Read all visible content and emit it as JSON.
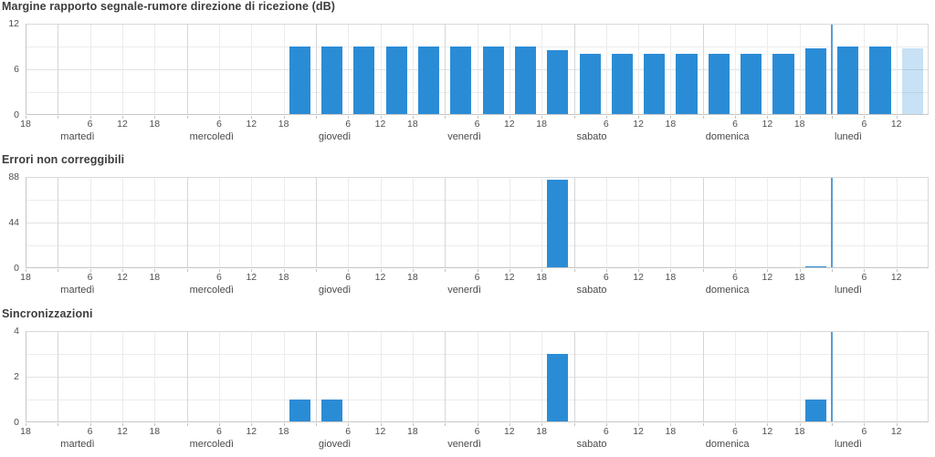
{
  "page": {
    "background": "#ffffff",
    "description_labels": {
      "language": "it"
    }
  },
  "colors": {
    "bar": "#2b8cd6",
    "bar_partial": "rgba(43,140,214,0.26)",
    "current_day_line": "#569dd4",
    "grid_minor": "#ececec",
    "grid_major": "#e2e2e2",
    "grid_day_boundary": "#d6d6d6",
    "plot_border": "#d9d9d9",
    "axis_line": "#c6c6c6",
    "tick_mark": "#c2c2c2",
    "title_text": "#3d3d3d",
    "tick_text": "#4f4f4f"
  },
  "time_axis": {
    "start_tick_label": "18",
    "days": [
      "martedì",
      "mercoledì",
      "giovedì",
      "venerdì",
      "sabato",
      "domenica",
      "lunedì"
    ],
    "intra_day_tick_labels": [
      "6",
      "12",
      "18"
    ],
    "total_hours": 168,
    "first_day_start_h": 6,
    "day_length_h": 24,
    "slot_hours": 6,
    "current_day": "lunedì",
    "current_day_start_h": 150
  },
  "chart_data": [
    {
      "type": "bar",
      "title": "Margine rapporto segnale-rumore direzione di ricezione (dB)",
      "ylabel": "",
      "xlabel": "",
      "ylim": [
        0,
        12
      ],
      "ytick_labels": [
        "0",
        "6",
        "12"
      ],
      "grid": true,
      "legend": "none",
      "bars": [
        {
          "day": "mercoledì",
          "hours": "18-24",
          "start_h": 48,
          "value": 9
        },
        {
          "day": "giovedì",
          "hours": "0-6",
          "start_h": 54,
          "value": 9
        },
        {
          "day": "giovedì",
          "hours": "6-12",
          "start_h": 60,
          "value": 9
        },
        {
          "day": "giovedì",
          "hours": "12-18",
          "start_h": 66,
          "value": 9
        },
        {
          "day": "giovedì",
          "hours": "18-24",
          "start_h": 72,
          "value": 9
        },
        {
          "day": "venerdì",
          "hours": "0-6",
          "start_h": 78,
          "value": 9
        },
        {
          "day": "venerdì",
          "hours": "6-12",
          "start_h": 84,
          "value": 9
        },
        {
          "day": "venerdì",
          "hours": "12-18",
          "start_h": 90,
          "value": 9
        },
        {
          "day": "venerdì",
          "hours": "18-24",
          "start_h": 96,
          "value": 8.5
        },
        {
          "day": "sabato",
          "hours": "0-6",
          "start_h": 102,
          "value": 8
        },
        {
          "day": "sabato",
          "hours": "6-12",
          "start_h": 108,
          "value": 8
        },
        {
          "day": "sabato",
          "hours": "12-18",
          "start_h": 114,
          "value": 8
        },
        {
          "day": "sabato",
          "hours": "18-24",
          "start_h": 120,
          "value": 8
        },
        {
          "day": "domenica",
          "hours": "0-6",
          "start_h": 126,
          "value": 8
        },
        {
          "day": "domenica",
          "hours": "6-12",
          "start_h": 132,
          "value": 8
        },
        {
          "day": "domenica",
          "hours": "12-18",
          "start_h": 138,
          "value": 8
        },
        {
          "day": "domenica",
          "hours": "18-24",
          "start_h": 144,
          "value": 8.8
        },
        {
          "day": "lunedì",
          "hours": "0-6",
          "start_h": 150,
          "value": 9
        },
        {
          "day": "lunedì",
          "hours": "6-12",
          "start_h": 156,
          "value": 9
        },
        {
          "day": "lunedì",
          "hours": "12-18",
          "start_h": 162,
          "value": 8.8,
          "partial": true
        }
      ]
    },
    {
      "type": "bar",
      "title": "Errori non correggibili",
      "ylabel": "",
      "xlabel": "",
      "ylim": [
        0,
        88
      ],
      "ytick_labels": [
        "0",
        "44",
        "88"
      ],
      "grid": true,
      "legend": "none",
      "bars": [
        {
          "day": "venerdì",
          "hours": "18-24",
          "start_h": 96,
          "value": 85
        },
        {
          "day": "domenica",
          "hours": "18-24",
          "start_h": 144,
          "value": 2
        }
      ]
    },
    {
      "type": "bar",
      "title": "Sincronizzazioni",
      "ylabel": "",
      "xlabel": "",
      "ylim": [
        0,
        4
      ],
      "ytick_labels": [
        "0",
        "2",
        "4"
      ],
      "grid": true,
      "legend": "none",
      "bars": [
        {
          "day": "mercoledì",
          "hours": "18-24",
          "start_h": 48,
          "value": 1
        },
        {
          "day": "giovedì",
          "hours": "0-6",
          "start_h": 54,
          "value": 1
        },
        {
          "day": "venerdì",
          "hours": "18-24",
          "start_h": 96,
          "value": 3
        },
        {
          "day": "domenica",
          "hours": "18-24",
          "start_h": 144,
          "value": 1
        }
      ]
    }
  ]
}
